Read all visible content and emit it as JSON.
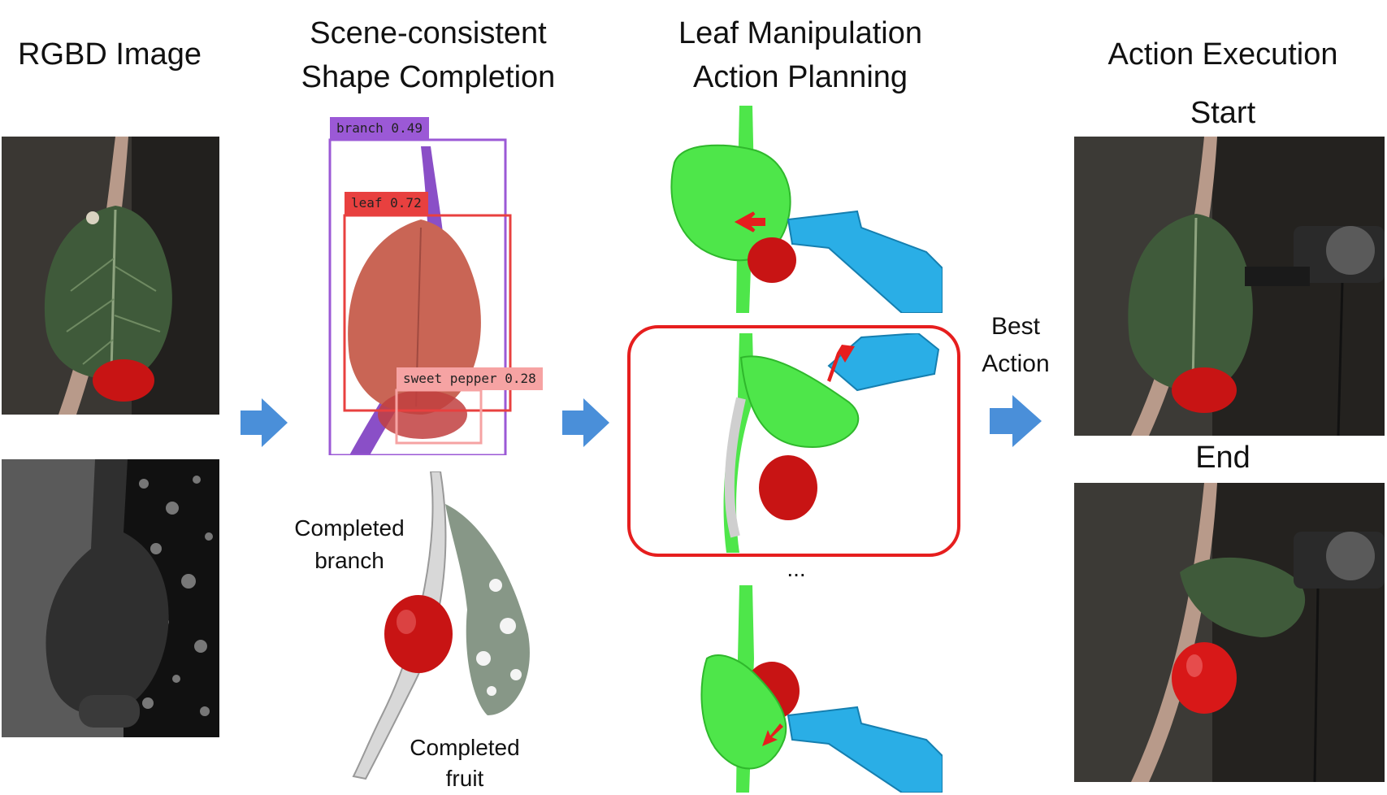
{
  "headings": {
    "rgbd": "RGBD Image",
    "shape_line1": "Scene-consistent",
    "shape_line2": "Shape Completion",
    "plan_line1": "Leaf Manipulation",
    "plan_line2": "Action Planning",
    "exec": "Action Execution"
  },
  "detections": [
    {
      "label": "branch 0.49",
      "color": "#9b59d6"
    },
    {
      "label": "leaf 0.72",
      "color": "#e8403f"
    },
    {
      "label": "sweet pepper 0.28",
      "color": "#f6a3a3"
    }
  ],
  "labels": {
    "completed_branch_1": "Completed",
    "completed_branch_2": "branch",
    "completed_fruit_1": "Completed",
    "completed_fruit_2": "fruit",
    "best_1": "Best",
    "best_2": "Action",
    "ellipsis": "...",
    "start": "Start",
    "end": "End"
  },
  "colors": {
    "arrow": "#4a8fd9",
    "highlight": "#e61e1e",
    "leaf_mesh": "#4ee64a",
    "gripper": "#2aaee6",
    "pepper": "#c81414"
  }
}
